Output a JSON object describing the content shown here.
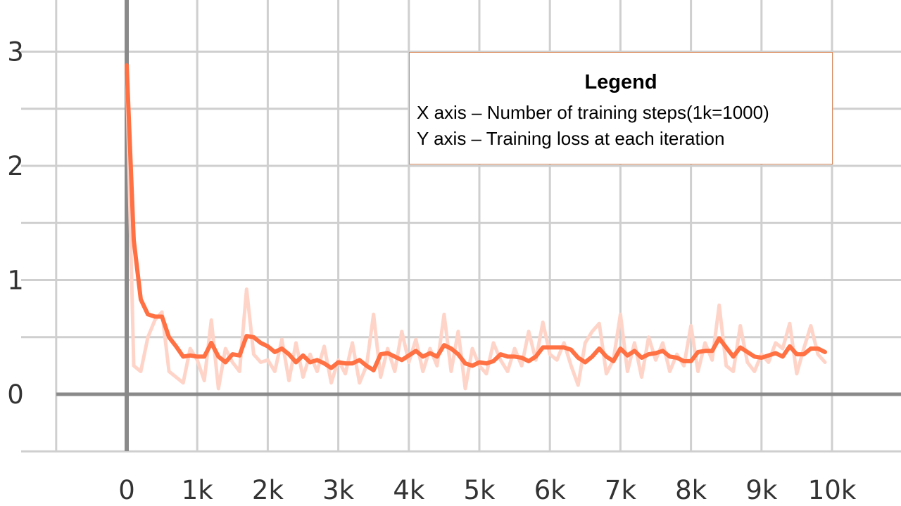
{
  "chart_data": {
    "type": "line",
    "title": "",
    "xlabel": "",
    "ylabel": "",
    "xlim": [
      -1000,
      11000
    ],
    "ylim": [
      -0.5,
      3.4
    ],
    "x_ticks": [
      0,
      1000,
      2000,
      3000,
      4000,
      5000,
      6000,
      7000,
      8000,
      9000,
      10000
    ],
    "x_tick_labels": [
      "0",
      "1k",
      "2k",
      "3k",
      "4k",
      "5k",
      "6k",
      "7k",
      "8k",
      "9k",
      "10k"
    ],
    "y_ticks": [
      0,
      1,
      2,
      3
    ],
    "y_tick_labels": [
      "0",
      "1",
      "2",
      "3"
    ],
    "grid": true,
    "legend": {
      "title": "Legend",
      "lines": [
        "X axis – Number of training steps(1k=1000)",
        "Y axis – Training loss at each iteration"
      ]
    },
    "series": [
      {
        "role": "smoothed",
        "color": "#ff7043",
        "x": [
          0,
          100,
          200,
          300,
          400,
          500,
          600,
          700,
          800,
          900,
          1000,
          1100,
          1200,
          1300,
          1400,
          1500,
          1600,
          1700,
          1800,
          1900,
          2000,
          2100,
          2200,
          2300,
          2400,
          2500,
          2600,
          2700,
          2800,
          2900,
          3000,
          3100,
          3200,
          3300,
          3400,
          3500,
          3600,
          3700,
          3800,
          3900,
          4000,
          4100,
          4200,
          4300,
          4400,
          4500,
          4600,
          4700,
          4800,
          4900,
          5000,
          5100,
          5200,
          5300,
          5400,
          5500,
          5600,
          5700,
          5800,
          5900,
          6000,
          6100,
          6200,
          6300,
          6400,
          6500,
          6600,
          6700,
          6800,
          6900,
          7000,
          7100,
          7200,
          7300,
          7400,
          7500,
          7600,
          7700,
          7800,
          7900,
          8000,
          8100,
          8200,
          8300,
          8400,
          8500,
          8600,
          8700,
          8800,
          8900,
          9000,
          9100,
          9200,
          9300,
          9400,
          9500,
          9600,
          9700,
          9800,
          9900
        ],
        "y": [
          2.88,
          1.35,
          0.83,
          0.7,
          0.68,
          0.68,
          0.5,
          0.42,
          0.33,
          0.34,
          0.33,
          0.33,
          0.45,
          0.33,
          0.28,
          0.35,
          0.34,
          0.51,
          0.5,
          0.45,
          0.42,
          0.37,
          0.4,
          0.35,
          0.28,
          0.34,
          0.28,
          0.3,
          0.27,
          0.23,
          0.28,
          0.27,
          0.27,
          0.3,
          0.25,
          0.21,
          0.35,
          0.36,
          0.33,
          0.3,
          0.34,
          0.38,
          0.33,
          0.36,
          0.33,
          0.43,
          0.4,
          0.35,
          0.27,
          0.25,
          0.28,
          0.27,
          0.29,
          0.35,
          0.33,
          0.33,
          0.32,
          0.29,
          0.33,
          0.41,
          0.41,
          0.41,
          0.41,
          0.39,
          0.32,
          0.28,
          0.33,
          0.4,
          0.33,
          0.29,
          0.4,
          0.34,
          0.38,
          0.32,
          0.35,
          0.36,
          0.38,
          0.33,
          0.32,
          0.29,
          0.29,
          0.37,
          0.38,
          0.38,
          0.49,
          0.41,
          0.33,
          0.41,
          0.37,
          0.33,
          0.32,
          0.34,
          0.36,
          0.33,
          0.42,
          0.35,
          0.35,
          0.4,
          0.4,
          0.37
        ]
      },
      {
        "role": "raw",
        "color": "#ffd4c8",
        "x": [
          0,
          100,
          200,
          300,
          400,
          500,
          600,
          700,
          800,
          900,
          1000,
          1100,
          1200,
          1300,
          1400,
          1500,
          1600,
          1700,
          1800,
          1900,
          2000,
          2100,
          2200,
          2300,
          2400,
          2500,
          2600,
          2700,
          2800,
          2900,
          3000,
          3100,
          3200,
          3300,
          3400,
          3500,
          3600,
          3700,
          3800,
          3900,
          4000,
          4100,
          4200,
          4300,
          4400,
          4500,
          4600,
          4700,
          4800,
          4900,
          5000,
          5100,
          5200,
          5300,
          5400,
          5500,
          5600,
          5700,
          5800,
          5900,
          6000,
          6100,
          6200,
          6300,
          6400,
          6500,
          6600,
          6700,
          6800,
          6900,
          7000,
          7100,
          7200,
          7300,
          7400,
          7500,
          7600,
          7700,
          7800,
          7900,
          8000,
          8100,
          8200,
          8300,
          8400,
          8500,
          8600,
          8700,
          8800,
          8900,
          9000,
          9100,
          9200,
          9300,
          9400,
          9500,
          9600,
          9700,
          9800,
          9900
        ],
        "y": [
          2.8,
          0.25,
          0.2,
          0.5,
          0.65,
          0.72,
          0.2,
          0.15,
          0.1,
          0.4,
          0.3,
          0.12,
          0.65,
          0.05,
          0.4,
          0.28,
          0.2,
          0.92,
          0.35,
          0.28,
          0.3,
          0.2,
          0.48,
          0.12,
          0.45,
          0.15,
          0.35,
          0.2,
          0.42,
          0.1,
          0.3,
          0.18,
          0.45,
          0.1,
          0.25,
          0.7,
          0.15,
          0.4,
          0.2,
          0.55,
          0.28,
          0.48,
          0.2,
          0.4,
          0.25,
          0.7,
          0.2,
          0.55,
          0.05,
          0.4,
          0.25,
          0.18,
          0.45,
          0.3,
          0.2,
          0.4,
          0.25,
          0.55,
          0.3,
          0.63,
          0.35,
          0.3,
          0.45,
          0.25,
          0.08,
          0.45,
          0.55,
          0.62,
          0.18,
          0.3,
          0.7,
          0.2,
          0.45,
          0.15,
          0.5,
          0.3,
          0.45,
          0.2,
          0.35,
          0.25,
          0.6,
          0.2,
          0.45,
          0.3,
          0.78,
          0.25,
          0.2,
          0.6,
          0.28,
          0.2,
          0.35,
          0.28,
          0.45,
          0.4,
          0.62,
          0.18,
          0.4,
          0.6,
          0.35,
          0.28
        ]
      }
    ]
  }
}
